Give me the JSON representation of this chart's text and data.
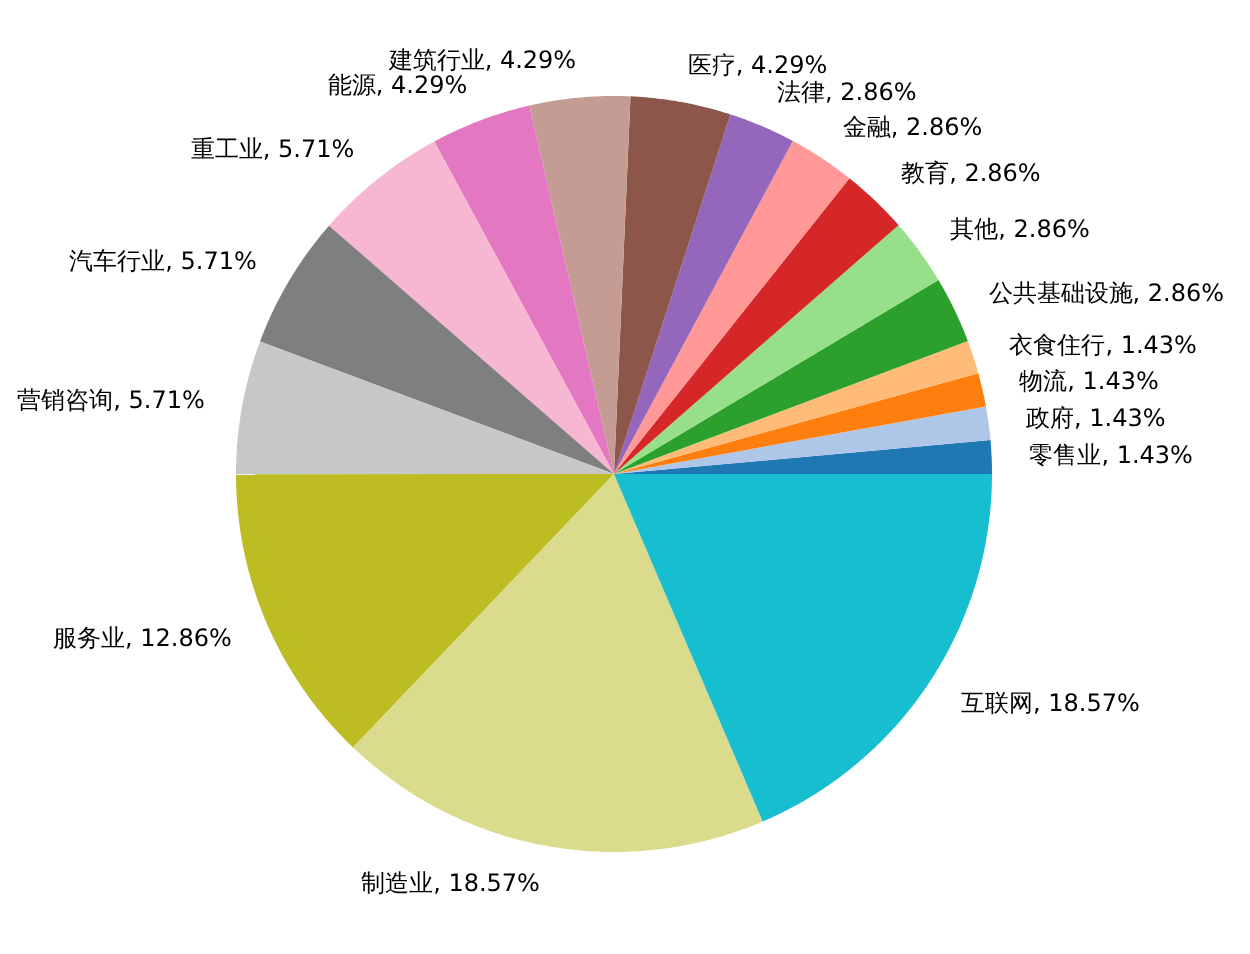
{
  "chart_data": {
    "type": "pie",
    "categories": [
      "零售业, 1.43%",
      "政府, 1.43%",
      "物流, 1.43%",
      "衣食住行, 1.43%",
      "公共基础设施, 2.86%",
      "其他, 2.86%",
      "教育, 2.86%",
      "金融, 2.86%",
      "法律, 2.86%",
      "医疗, 4.29%",
      "建筑行业, 4.29%",
      "能源, 4.29%",
      "重工业, 5.71%",
      "汽车行业, 5.71%",
      "营销咨询, 5.71%",
      "服务业, 12.86%",
      "制造业, 18.57%",
      "互联网, 18.57%"
    ],
    "values": [
      1.43,
      1.43,
      1.43,
      1.43,
      2.86,
      2.86,
      2.86,
      2.86,
      2.86,
      4.29,
      4.29,
      4.29,
      5.71,
      5.71,
      5.71,
      12.86,
      18.57,
      18.57
    ],
    "colors": [
      "#1f77b4",
      "#aec7e8",
      "#ff7f0e",
      "#ffbb78",
      "#2ca02c",
      "#98df8a",
      "#d62728",
      "#ff9896",
      "#9467bd",
      "#8c564b",
      "#c49c94",
      "#e377c2",
      "#f7b6d2",
      "#7f7f7f",
      "#c7c7c7",
      "#bcbd22",
      "#dbdb8d",
      "#17becf"
    ]
  }
}
